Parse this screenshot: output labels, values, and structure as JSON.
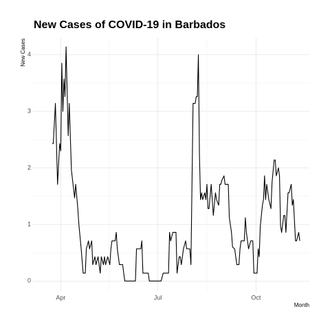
{
  "chart_data": {
    "type": "line",
    "title": "New Cases of COVID-19 in Barbados",
    "xlabel": "Month",
    "ylabel": "New Cases",
    "x": [
      84,
      85,
      87,
      89,
      91,
      92,
      93,
      94,
      95,
      96,
      97,
      99,
      100,
      102,
      105,
      106,
      108,
      109,
      111,
      113,
      115,
      116,
      118,
      119,
      121,
      122,
      124,
      125,
      127,
      129,
      130,
      132,
      133,
      134,
      136,
      138,
      139,
      140,
      143,
      144,
      145,
      147,
      150,
      152,
      162,
      163,
      167,
      168,
      169,
      174,
      175,
      186,
      188,
      193,
      194,
      195,
      197,
      200,
      201,
      203,
      204,
      205,
      207,
      209,
      210,
      213,
      214,
      216,
      218,
      219,
      220,
      221,
      222,
      223,
      224,
      225,
      227,
      228,
      229,
      230,
      231,
      233,
      234,
      235,
      237,
      238,
      240,
      241,
      242,
      243,
      245,
      246,
      249,
      250,
      252,
      253,
      255,
      257,
      259,
      260,
      261,
      264,
      265,
      266,
      268,
      270,
      272,
      273,
      276,
      277,
      278,
      279,
      281,
      282,
      283,
      284,
      285,
      287,
      289,
      290,
      292,
      293,
      294,
      296,
      297,
      298,
      299,
      301,
      302,
      303,
      305,
      306,
      308,
      309,
      310,
      312,
      313,
      315,
      316
    ],
    "series": [
      {
        "name": "New Cases",
        "color": "#000000",
        "values": [
          2.43,
          2.43,
          3.14,
          1.71,
          2.43,
          2.3,
          3.85,
          3.0,
          3.57,
          3.26,
          4.14,
          2.57,
          3.14,
          1.96,
          1.47,
          1.71,
          1.28,
          1.0,
          0.6,
          0.14,
          0.14,
          0.57,
          0.71,
          0.57,
          0.71,
          0.29,
          0.43,
          0.29,
          0.43,
          0.14,
          0.43,
          0.29,
          0.43,
          0.29,
          0.43,
          0.29,
          0.57,
          0.71,
          0.71,
          0.86,
          0.57,
          0.29,
          0.29,
          0,
          0,
          0.57,
          0.57,
          0.71,
          0.14,
          0.14,
          0,
          0,
          0.14,
          0.14,
          0.86,
          0.71,
          0.86,
          0.86,
          0.14,
          0.43,
          0.43,
          0.29,
          0.57,
          0.71,
          0.57,
          0.57,
          0.29,
          3.14,
          3.14,
          3.26,
          3.26,
          4.0,
          2.21,
          1.44,
          1.56,
          1.44,
          1.56,
          1.44,
          1.71,
          1.28,
          1.28,
          1.71,
          1.43,
          1.16,
          1.56,
          1.44,
          1.34,
          1.71,
          1.71,
          1.78,
          1.86,
          1.71,
          1.71,
          1.12,
          0.86,
          0.6,
          0.57,
          0.29,
          0.29,
          0.57,
          0.71,
          0.71,
          1.12,
          0.86,
          0.57,
          0.71,
          0.71,
          0.14,
          0.14,
          0.57,
          0.43,
          0.97,
          1.34,
          1.44,
          1.86,
          1.44,
          1.71,
          1.44,
          1.28,
          1.74,
          2.14,
          2.14,
          1.86,
          2.0,
          1.86,
          0.97,
          0.86,
          1.16,
          1.16,
          0.86,
          1.56,
          1.56,
          1.71,
          1.34,
          1.44,
          0.71,
          0.71,
          0.86,
          0.71
        ]
      }
    ],
    "xlim": [
      66,
      325
    ],
    "xticks": [
      {
        "value": 92,
        "label": "Apr"
      },
      {
        "value": 183,
        "label": "Jul"
      },
      {
        "value": 275,
        "label": "Oct"
      }
    ],
    "minor_xticks": [
      137,
      229
    ],
    "ylim": [
      -0.19,
      4.3
    ],
    "yticks": [
      0,
      1,
      2,
      3,
      4
    ],
    "minor_yticks": [
      0.5,
      1.5,
      2.5,
      3.5
    ],
    "grid": true
  }
}
